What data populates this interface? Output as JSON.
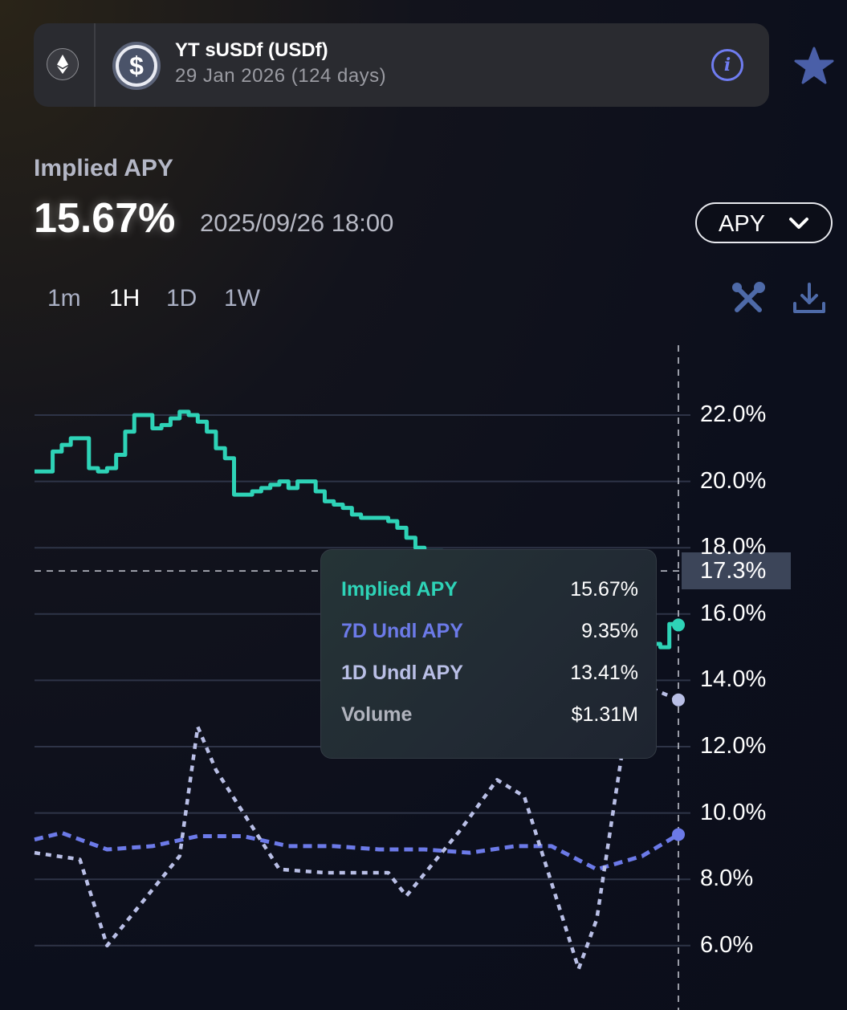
{
  "header": {
    "network_icon": "ethereum-icon",
    "token_icon": "dollar-coin-icon",
    "title": "YT sUSDf (USDf)",
    "subtitle": "29 Jan 2026 (124 days)",
    "info_icon": "info-icon",
    "favorite_icon": "star-icon"
  },
  "summary": {
    "label": "Implied APY",
    "value": "15.67%",
    "timestamp": "2025/09/26 18:00",
    "metric_select": "APY"
  },
  "timeframes": [
    {
      "label": "1m",
      "active": false
    },
    {
      "label": "1H",
      "active": true
    },
    {
      "label": "1D",
      "active": false
    },
    {
      "label": "1W",
      "active": false
    }
  ],
  "tools": {
    "settings_icon": "tools-icon",
    "download_icon": "download-icon"
  },
  "tooltip": {
    "rows": [
      {
        "label": "Implied APY",
        "value": "15.67%",
        "color": "#2ed3b7"
      },
      {
        "label": "7D Undl APY",
        "value": "9.35%",
        "color": "#6c7ae8"
      },
      {
        "label": "1D Undl APY",
        "value": "13.41%",
        "color": "#b9bfe6"
      },
      {
        "label": "Volume",
        "value": "$1.31M",
        "color": "#b0b3bd"
      }
    ]
  },
  "chart_data": {
    "type": "line",
    "y_ticks": [
      "22.0%",
      "20.0%",
      "18.0%",
      "16.0%",
      "14.0%",
      "12.0%",
      "10.0%",
      "8.0%",
      "6.0%"
    ],
    "ylim": [
      4.0,
      24.0
    ],
    "grid": true,
    "crosshair_value": "17.3%",
    "n_points": 72,
    "series": [
      {
        "name": "Implied APY",
        "color": "#2ed3b7",
        "style": "step",
        "values": [
          20.3,
          20.3,
          20.9,
          21.1,
          21.3,
          21.3,
          20.4,
          20.3,
          20.4,
          20.8,
          21.5,
          22.0,
          22.0,
          21.6,
          21.7,
          21.9,
          22.1,
          22.0,
          21.8,
          21.5,
          21.0,
          20.7,
          19.6,
          19.6,
          19.7,
          19.8,
          19.9,
          20.0,
          19.8,
          20.0,
          20.0,
          19.7,
          19.4,
          19.3,
          19.2,
          19.0,
          18.9,
          18.9,
          18.9,
          18.8,
          18.6,
          18.3,
          18.0,
          17.9,
          17.9,
          17.8,
          17.7,
          17.5,
          17.4,
          17.3,
          17.1,
          17.0,
          16.8,
          16.6,
          16.4,
          16.2,
          16.0,
          15.9,
          15.9,
          15.8,
          15.7,
          15.6,
          15.6,
          15.5,
          15.4,
          15.3,
          15.3,
          15.2,
          15.1,
          15.0,
          15.7,
          15.67
        ]
      },
      {
        "name": "7D Undl APY",
        "color": "#6c7ae8",
        "style": "dashed",
        "x": [
          0,
          3,
          8,
          13,
          18,
          23,
          28,
          33,
          38,
          43,
          48,
          53,
          57,
          62,
          67,
          71
        ],
        "values": [
          9.2,
          9.4,
          8.9,
          9.0,
          9.3,
          9.3,
          9.0,
          9.0,
          8.9,
          8.9,
          8.8,
          9.0,
          9.0,
          8.3,
          8.7,
          9.35
        ]
      },
      {
        "name": "1D Undl APY",
        "color": "#b9bfe6",
        "style": "dotted",
        "x": [
          0,
          5,
          8,
          16,
          18,
          20,
          27,
          32,
          39,
          41,
          47,
          51,
          54,
          60,
          62,
          66,
          72
        ],
        "values": [
          8.8,
          8.6,
          6.0,
          8.7,
          12.6,
          11.3,
          8.3,
          8.2,
          8.2,
          7.5,
          9.5,
          11.0,
          10.5,
          5.3,
          6.8,
          14.0,
          13.41
        ]
      }
    ]
  }
}
